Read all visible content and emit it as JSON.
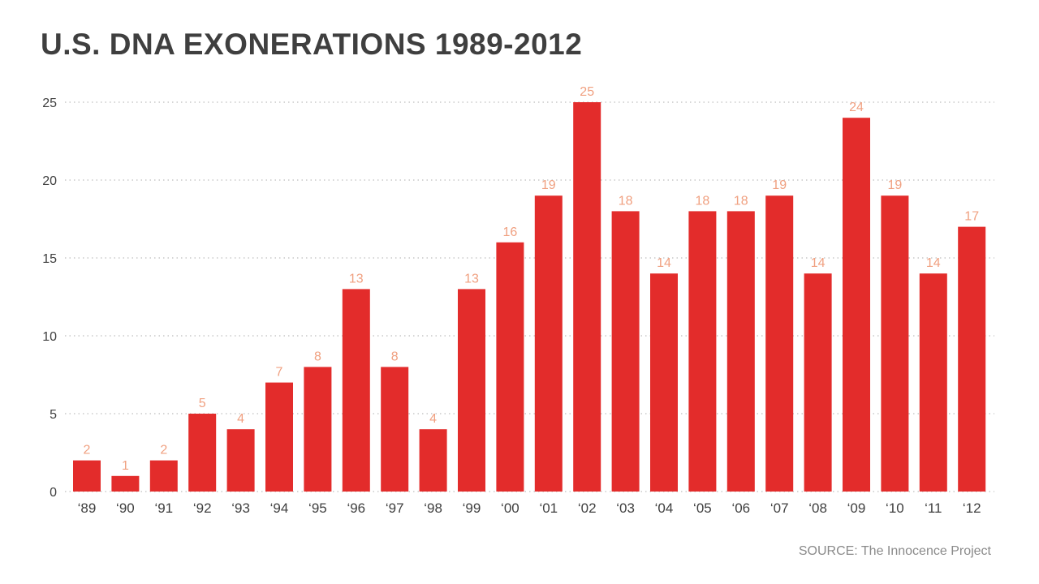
{
  "title": "U.S. DNA EXONERATIONS 1989-2012",
  "source": "SOURCE: The Innocence Project",
  "colors": {
    "bar": "#e32c2b",
    "value_label": "#f0a080",
    "text": "#3f3f3f",
    "grid": "#c9c9c9",
    "source": "#8a8a8a"
  },
  "chart_data": {
    "type": "bar",
    "title": "U.S. DNA EXONERATIONS 1989-2012",
    "categories": [
      "‘89",
      "‘90",
      "‘91",
      "‘92",
      "‘93",
      "‘94",
      "‘95",
      "‘96",
      "‘97",
      "‘98",
      "‘99",
      "‘00",
      "‘01",
      "‘02",
      "‘03",
      "‘04",
      "‘05",
      "‘06",
      "‘07",
      "‘08",
      "‘09",
      "‘10",
      "‘11",
      "‘12"
    ],
    "values": [
      2,
      1,
      2,
      5,
      4,
      7,
      8,
      13,
      8,
      4,
      13,
      16,
      19,
      25,
      18,
      14,
      18,
      18,
      19,
      14,
      24,
      19,
      14,
      17
    ],
    "ylim": [
      0,
      25
    ],
    "yticks": [
      0,
      5,
      10,
      15,
      20,
      25
    ],
    "xlabel": "",
    "ylabel": "",
    "grid": true,
    "data_labels": true
  }
}
